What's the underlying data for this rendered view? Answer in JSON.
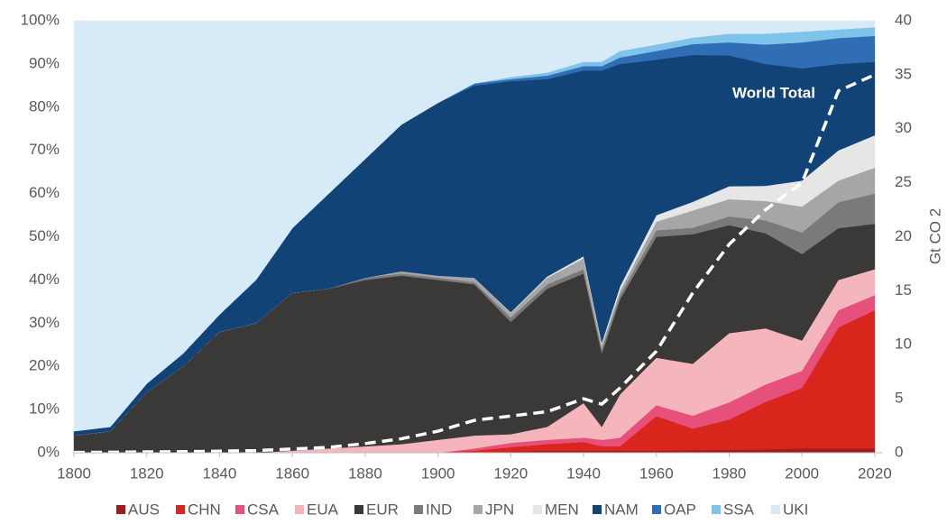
{
  "chart_data": {
    "type": "area",
    "stacked": true,
    "annotation": "World Total",
    "y2_label": "Gt CO 2",
    "x": [
      1800,
      1810,
      1820,
      1830,
      1840,
      1850,
      1860,
      1870,
      1880,
      1890,
      1900,
      1910,
      1920,
      1930,
      1940,
      1945,
      1950,
      1960,
      1970,
      1980,
      1990,
      2000,
      2010,
      2020
    ],
    "xlim": [
      1800,
      2022
    ],
    "xticks": [
      1800,
      1820,
      1840,
      1860,
      1880,
      1900,
      1920,
      1940,
      1960,
      1980,
      2000,
      2020
    ],
    "ylim": [
      0,
      100
    ],
    "yticks": [
      {
        "value": 0,
        "label": "0%"
      },
      {
        "value": 10,
        "label": "10%"
      },
      {
        "value": 20,
        "label": "20%"
      },
      {
        "value": 30,
        "label": "30%"
      },
      {
        "value": 40,
        "label": "40%"
      },
      {
        "value": 50,
        "label": "50%"
      },
      {
        "value": 60,
        "label": "60%"
      },
      {
        "value": 70,
        "label": "70%"
      },
      {
        "value": 80,
        "label": "80%"
      },
      {
        "value": 90,
        "label": "90%"
      },
      {
        "value": 100,
        "label": "100%"
      }
    ],
    "y2lim": [
      0,
      40
    ],
    "y2ticks": [
      0,
      5,
      10,
      15,
      20,
      25,
      30,
      35,
      40
    ],
    "legend": "bottom",
    "series": [
      {
        "name": "AUS",
        "color": "#9e1b1e",
        "values": [
          0,
          0,
          0,
          0,
          0,
          0,
          0,
          0,
          0,
          0,
          0,
          0,
          0.3,
          0.5,
          0.5,
          0.5,
          0.5,
          0.5,
          0.6,
          0.7,
          0.8,
          1,
          1,
          1
        ]
      },
      {
        "name": "CHN",
        "color": "#d9261c",
        "values": [
          0,
          0,
          0,
          0,
          0,
          0,
          0,
          0,
          0,
          0,
          0,
          0.5,
          1,
          1.5,
          2,
          1,
          1,
          8,
          5,
          7,
          11,
          14,
          28,
          32
        ]
      },
      {
        "name": "CSA",
        "color": "#e6507a",
        "values": [
          0,
          0,
          0,
          0,
          0,
          0,
          0,
          0,
          0,
          0,
          0,
          0.5,
          1,
          1,
          1,
          1.5,
          2,
          2.5,
          3,
          4,
          4,
          4,
          4,
          3.5
        ]
      },
      {
        "name": "EUA",
        "color": "#f4b6bc",
        "values": [
          0,
          0,
          0,
          0,
          0,
          0,
          0.5,
          1,
          1.5,
          2,
          3,
          3,
          2,
          3,
          8,
          3,
          10,
          11,
          12,
          16,
          13,
          7,
          7,
          6
        ]
      },
      {
        "name": "EUR",
        "color": "#3b3838",
        "values": [
          4,
          5,
          14,
          20,
          28,
          30,
          36.5,
          37,
          38.5,
          39,
          37,
          35,
          26,
          32,
          30,
          17,
          22,
          28,
          30,
          25,
          22,
          20,
          12,
          10.5
        ]
      },
      {
        "name": "IND",
        "color": "#7a7a7a",
        "values": [
          0,
          0,
          0,
          0,
          0,
          0,
          0,
          0,
          0.5,
          0.5,
          0.5,
          0.5,
          1,
          1,
          1,
          1,
          1,
          1.5,
          1.5,
          2,
          3,
          5,
          6,
          7
        ]
      },
      {
        "name": "JPN",
        "color": "#a6a6a6",
        "values": [
          0,
          0,
          0,
          0,
          0,
          0,
          0,
          0,
          0,
          0.5,
          0.5,
          1,
          1,
          1.5,
          2.5,
          1,
          1,
          2,
          4,
          4,
          4.5,
          6,
          5,
          6
        ]
      },
      {
        "name": "MEN",
        "color": "#e6e6e6",
        "values": [
          0,
          0,
          0,
          0,
          0,
          0,
          0,
          0,
          0,
          0,
          0,
          0,
          0.2,
          0.3,
          0.5,
          0.5,
          1,
          1.5,
          2,
          3,
          3.5,
          6,
          7,
          7.5
        ]
      },
      {
        "name": "NAM",
        "color": "#124377",
        "values": [
          1,
          1,
          2,
          3,
          4,
          10,
          15,
          22,
          27.5,
          34,
          40,
          44.5,
          53.5,
          45.7,
          43,
          63,
          51.5,
          36,
          34,
          30.3,
          28.2,
          26,
          20,
          17
        ]
      },
      {
        "name": "OAP",
        "color": "#2f6db5",
        "values": [
          0,
          0,
          0,
          0,
          0,
          0,
          0,
          0,
          0,
          0,
          0,
          0.5,
          0.5,
          0.8,
          1,
          1,
          1.5,
          2,
          2.5,
          3,
          4.5,
          6,
          6,
          6
        ]
      },
      {
        "name": "SSA",
        "color": "#7ec3ea",
        "values": [
          0,
          0,
          0,
          0,
          0,
          0,
          0,
          0,
          0,
          0,
          0,
          0,
          0.5,
          0.7,
          1,
          1,
          1.5,
          1.5,
          1.5,
          2,
          2.5,
          2.5,
          2,
          2
        ]
      },
      {
        "name": "UKI",
        "color": "#d6eaf8",
        "values": [
          95,
          94,
          84,
          77,
          68,
          60,
          48,
          40,
          32,
          24,
          19,
          14.5,
          13,
          12,
          9.5,
          9.5,
          7,
          5.5,
          3.9,
          3,
          3,
          2.5,
          2,
          1.5
        ]
      }
    ],
    "line_series": {
      "name": "World Total",
      "axis": "y2",
      "color": "#ffffff",
      "dashed": true,
      "values": [
        0.03,
        0.05,
        0.08,
        0.1,
        0.15,
        0.2,
        0.35,
        0.5,
        0.85,
        1.3,
        2,
        3,
        3.4,
        3.8,
        5,
        4.5,
        6,
        9.4,
        14.8,
        19.3,
        22.5,
        25,
        33.5,
        35
      ]
    }
  }
}
